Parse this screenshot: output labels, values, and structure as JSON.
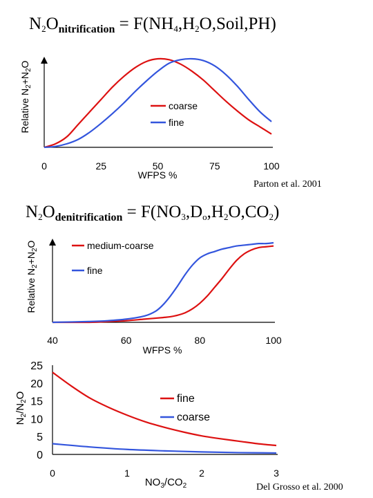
{
  "equations": [
    {
      "n": "N",
      "sub1": "2",
      "o": "O",
      "subscript": "nitrification",
      "rhs_prefix": " = F(NH",
      "s2": "4",
      "p1": ",H",
      "s3": "2",
      "p2": "O,Soil,PH)"
    },
    {
      "n": "N",
      "sub1": "2",
      "o": "O",
      "subscript": "denitrification",
      "rhs_prefix": " = F(NO",
      "s2": "3",
      "p1": ",D",
      "s3": "o",
      "p2": ",H",
      "s4": "2",
      "p3": "O,CO",
      "s5": "2",
      "p4": ")"
    }
  ],
  "citations": [
    "Parton et al. 2001",
    "Del Grosso et al. 2000"
  ],
  "chart_data": [
    {
      "type": "line",
      "title": "",
      "xlabel": "WFPS %",
      "ylabel": "Relative N2+N2O",
      "xlim": [
        0,
        100
      ],
      "ylim": [
        0,
        1
      ],
      "x_ticks": [
        "0",
        "25",
        "50",
        "75",
        "100"
      ],
      "grid": false,
      "legend_position": "center-right",
      "series": [
        {
          "name": "coarse",
          "color": "#dd1111",
          "x": [
            0,
            5,
            10,
            15,
            20,
            25,
            30,
            35,
            40,
            45,
            50,
            55,
            60,
            65,
            70,
            75,
            80,
            85,
            90,
            95,
            100
          ],
          "y": [
            0.0,
            0.04,
            0.12,
            0.26,
            0.4,
            0.54,
            0.68,
            0.8,
            0.9,
            0.97,
            1.0,
            0.99,
            0.94,
            0.86,
            0.76,
            0.64,
            0.52,
            0.41,
            0.31,
            0.23,
            0.15
          ]
        },
        {
          "name": "fine",
          "color": "#3355dd",
          "x": [
            0,
            5,
            10,
            15,
            20,
            25,
            30,
            35,
            40,
            45,
            50,
            55,
            60,
            65,
            70,
            75,
            80,
            85,
            90,
            95,
            100
          ],
          "y": [
            0.0,
            0.01,
            0.04,
            0.09,
            0.17,
            0.27,
            0.38,
            0.5,
            0.63,
            0.75,
            0.86,
            0.95,
            0.99,
            1.0,
            0.98,
            0.92,
            0.82,
            0.69,
            0.54,
            0.4,
            0.29
          ]
        }
      ]
    },
    {
      "type": "line",
      "title": "",
      "xlabel": "WFPS %",
      "ylabel": "Relative N2+N2O",
      "xlim": [
        40,
        100
      ],
      "ylim": [
        0,
        1
      ],
      "x_ticks": [
        "40",
        "60",
        "80",
        "100"
      ],
      "grid": false,
      "legend_position": "top-left",
      "series": [
        {
          "name": "medium-coarse",
          "color": "#dd1111",
          "x": [
            40,
            50,
            55,
            60,
            65,
            70,
            72,
            74,
            76,
            78,
            80,
            82,
            84,
            86,
            88,
            90,
            92,
            94,
            96,
            98,
            100
          ],
          "y": [
            0.0,
            0.0,
            0.01,
            0.02,
            0.04,
            0.06,
            0.07,
            0.09,
            0.12,
            0.17,
            0.24,
            0.33,
            0.44,
            0.55,
            0.67,
            0.78,
            0.86,
            0.91,
            0.94,
            0.95,
            0.96
          ]
        },
        {
          "name": "fine",
          "color": "#3355dd",
          "x": [
            40,
            50,
            55,
            60,
            65,
            68,
            70,
            72,
            74,
            76,
            78,
            80,
            82,
            84,
            86,
            88,
            90,
            92,
            94,
            96,
            98,
            100
          ],
          "y": [
            0.0,
            0.01,
            0.02,
            0.04,
            0.08,
            0.14,
            0.22,
            0.33,
            0.46,
            0.6,
            0.72,
            0.81,
            0.86,
            0.89,
            0.92,
            0.94,
            0.96,
            0.97,
            0.98,
            0.99,
            0.99,
            1.0
          ]
        }
      ]
    },
    {
      "type": "line",
      "title": "",
      "xlabel": "NO3/CO2",
      "ylabel": "N2/N2O",
      "xlim": [
        0,
        3
      ],
      "ylim": [
        0,
        25
      ],
      "x_ticks": [
        "0",
        "1",
        "2",
        "3"
      ],
      "y_ticks": [
        "0",
        "5",
        "10",
        "15",
        "20",
        "25"
      ],
      "grid": false,
      "legend_position": "center-right",
      "series": [
        {
          "name": "fine",
          "color": "#dd1111",
          "x": [
            0,
            0.25,
            0.5,
            0.75,
            1,
            1.25,
            1.5,
            1.75,
            2,
            2.25,
            2.5,
            2.75,
            3
          ],
          "y": [
            23,
            19.2,
            15.8,
            13.2,
            11,
            9.1,
            7.6,
            6.3,
            5.2,
            4.4,
            3.7,
            3.0,
            2.5
          ]
        },
        {
          "name": "coarse",
          "color": "#3355dd",
          "x": [
            0,
            0.5,
            1,
            1.5,
            2,
            2.5,
            3
          ],
          "y": [
            3.0,
            2.1,
            1.4,
            1.0,
            0.7,
            0.5,
            0.4
          ]
        }
      ]
    }
  ]
}
